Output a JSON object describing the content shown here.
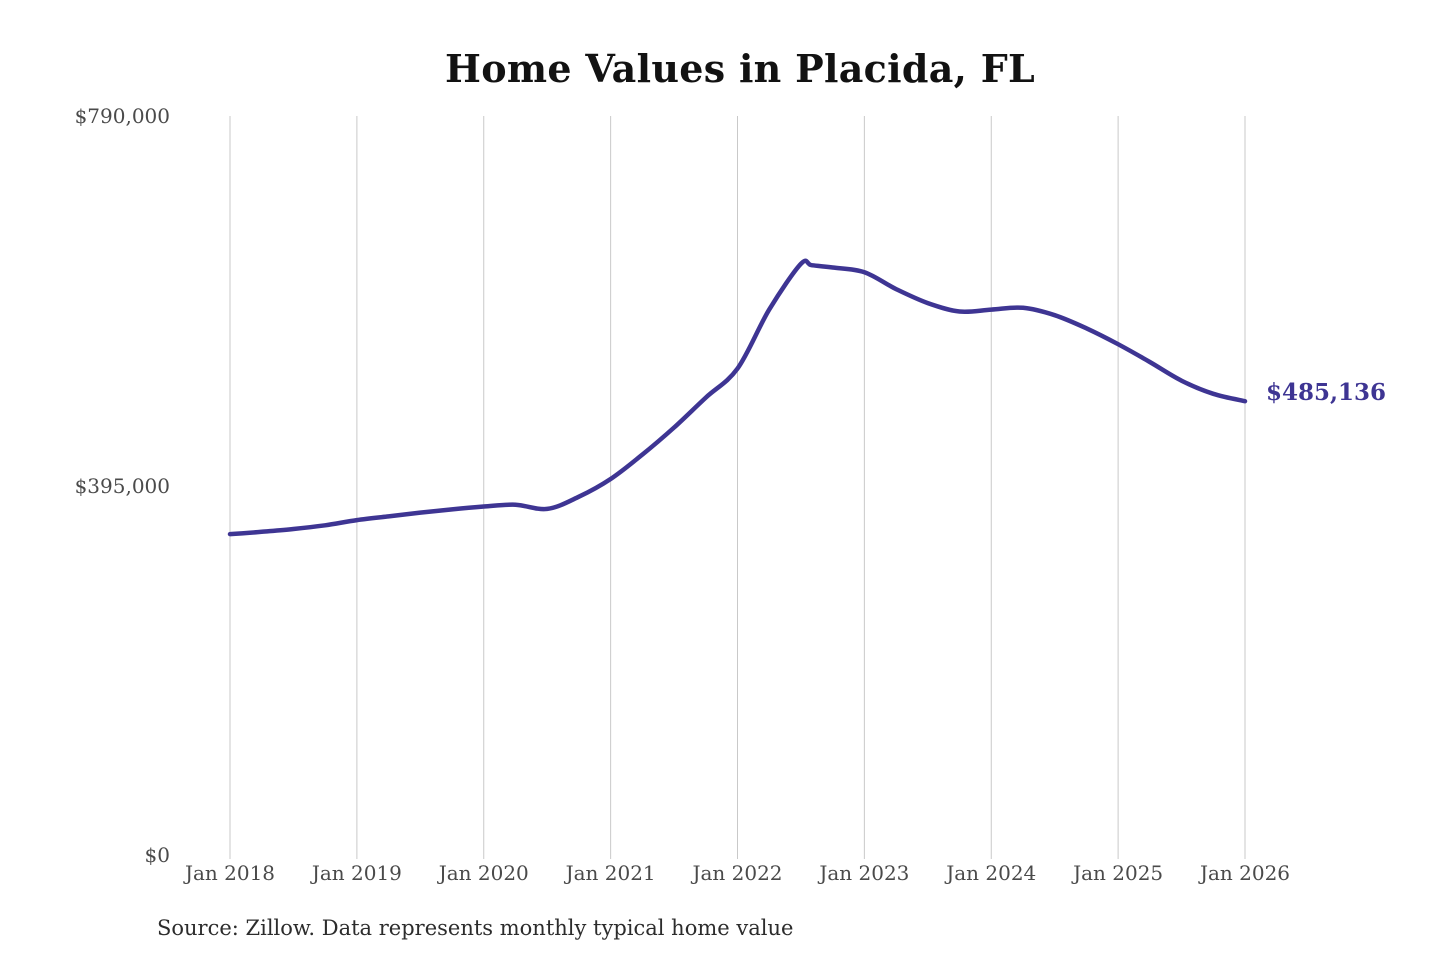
{
  "page": {
    "background_color": "#ffffff"
  },
  "chart_data": {
    "type": "line",
    "title": "Home Values in Placida, FL",
    "source_note": "Source: Zillow. Data represents monthly typical home value",
    "legend": "none",
    "grid": "vertical-only",
    "grid_color": "#c9c9c9",
    "x_axis": {
      "tick_labels": [
        "Jan 2018",
        "Jan 2019",
        "Jan 2020",
        "Jan 2021",
        "Jan 2022",
        "Jan 2023",
        "Jan 2024",
        "Jan 2025",
        "Jan 2026"
      ],
      "months_per_tick": 12,
      "total_months": 96
    },
    "y_axis": {
      "range": [
        0,
        790000
      ],
      "ticks": [
        {
          "label": "$0",
          "value": 0
        },
        {
          "label": "$395,000",
          "value": 395000
        },
        {
          "label": "$790,000",
          "value": 790000
        }
      ]
    },
    "series": [
      {
        "name": "Monthly typical home value",
        "color": "#3e3593",
        "points_month_value": [
          [
            0,
            343000
          ],
          [
            3,
            345500
          ],
          [
            6,
            348500
          ],
          [
            9,
            352500
          ],
          [
            12,
            358000
          ],
          [
            15,
            362000
          ],
          [
            18,
            366000
          ],
          [
            21,
            369500
          ],
          [
            24,
            372500
          ],
          [
            27,
            374500
          ],
          [
            30,
            370000
          ],
          [
            33,
            383000
          ],
          [
            36,
            402000
          ],
          [
            39,
            428000
          ],
          [
            42,
            457000
          ],
          [
            45,
            489000
          ],
          [
            48,
            520000
          ],
          [
            51,
            583000
          ],
          [
            54,
            632000
          ],
          [
            55,
            630500
          ],
          [
            57,
            628000
          ],
          [
            60,
            623000
          ],
          [
            63,
            605000
          ],
          [
            66,
            590000
          ],
          [
            69,
            581000
          ],
          [
            72,
            583000
          ],
          [
            75,
            585000
          ],
          [
            78,
            577000
          ],
          [
            81,
            563000
          ],
          [
            84,
            546000
          ],
          [
            87,
            527000
          ],
          [
            90,
            507000
          ],
          [
            93,
            493000
          ],
          [
            96,
            485136
          ]
        ]
      }
    ],
    "end_annotation": {
      "label": "$485,136",
      "value": 485136,
      "color": "#3e3593"
    }
  }
}
